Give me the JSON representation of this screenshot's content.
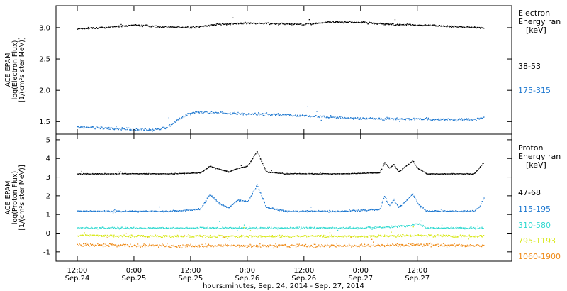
{
  "chart_data": [
    {
      "type": "scatter",
      "panel": "electron",
      "ylabel": [
        "ACE EPAM",
        "log(Electron Flux)",
        "[1/(cm²s ster MeV)]"
      ],
      "legend_title": [
        "Electron",
        "Energy ran",
        "[keV]"
      ],
      "ylim": [
        1.3,
        3.35
      ],
      "yticks": [
        {
          "v": 1.5,
          "label": "1.5"
        },
        {
          "v": 2.0,
          "label": "2.0"
        },
        {
          "v": 2.5,
          "label": "2.5"
        },
        {
          "v": 3.0,
          "label": "3.0"
        }
      ],
      "series": [
        {
          "name": "38-53",
          "color": "#000000",
          "values_by_time": [
            [
              0,
              2.99
            ],
            [
              6,
              3.01
            ],
            [
              12,
              3.05
            ],
            [
              18,
              3.02
            ],
            [
              24,
              3.01
            ],
            [
              30,
              3.06
            ],
            [
              36,
              3.08
            ],
            [
              42,
              3.07
            ],
            [
              48,
              3.06
            ],
            [
              54,
              3.1
            ],
            [
              60,
              3.09
            ],
            [
              66,
              3.06
            ],
            [
              72,
              3.05
            ],
            [
              78,
              3.03
            ],
            [
              84,
              3.01
            ],
            [
              86,
              3.0
            ]
          ],
          "noise": 0.02
        },
        {
          "name": "175-315",
          "color": "#1e78d0",
          "values_by_time": [
            [
              0,
              1.42
            ],
            [
              6,
              1.4
            ],
            [
              12,
              1.38
            ],
            [
              16,
              1.37
            ],
            [
              19,
              1.42
            ],
            [
              21,
              1.52
            ],
            [
              23,
              1.62
            ],
            [
              25,
              1.66
            ],
            [
              30,
              1.65
            ],
            [
              36,
              1.63
            ],
            [
              42,
              1.62
            ],
            [
              48,
              1.6
            ],
            [
              54,
              1.58
            ],
            [
              60,
              1.56
            ],
            [
              66,
              1.55
            ],
            [
              72,
              1.55
            ],
            [
              78,
              1.54
            ],
            [
              84,
              1.54
            ],
            [
              86,
              1.57
            ]
          ],
          "noise": 0.03
        }
      ]
    },
    {
      "type": "scatter",
      "panel": "proton",
      "ylabel": [
        "ACE EPAM",
        "log(Proton Flux)",
        "[1/(cm²s ster MeV)]"
      ],
      "legend_title": [
        "Proton",
        "Energy ran",
        "[keV]"
      ],
      "ylim": [
        -1.5,
        5.3
      ],
      "yticks": [
        {
          "v": -1,
          "label": "-1"
        },
        {
          "v": 0,
          "label": "0"
        },
        {
          "v": 1,
          "label": "1"
        },
        {
          "v": 2,
          "label": "2"
        },
        {
          "v": 3,
          "label": "3"
        },
        {
          "v": 4,
          "label": "4"
        },
        {
          "v": 5,
          "label": "5"
        }
      ],
      "series": [
        {
          "name": "47-68",
          "color": "#000000",
          "values_by_time": [
            [
              0,
              3.2
            ],
            [
              10,
              3.2
            ],
            [
              20,
              3.2
            ],
            [
              26,
              3.25
            ],
            [
              28,
              3.6
            ],
            [
              30,
              3.45
            ],
            [
              32,
              3.3
            ],
            [
              34,
              3.5
            ],
            [
              36,
              3.6
            ],
            [
              38,
              4.4
            ],
            [
              40,
              3.3
            ],
            [
              44,
              3.2
            ],
            [
              56,
              3.2
            ],
            [
              64,
              3.25
            ],
            [
              65,
              3.8
            ],
            [
              66,
              3.5
            ],
            [
              67,
              3.7
            ],
            [
              68,
              3.3
            ],
            [
              71,
              3.9
            ],
            [
              72,
              3.5
            ],
            [
              74,
              3.2
            ],
            [
              84,
              3.2
            ],
            [
              85,
              3.5
            ],
            [
              86,
              3.8
            ]
          ],
          "noise": 0.03
        },
        {
          "name": "115-195",
          "color": "#1e78d0",
          "values_by_time": [
            [
              0,
              1.2
            ],
            [
              10,
              1.2
            ],
            [
              20,
              1.2
            ],
            [
              26,
              1.3
            ],
            [
              28,
              2.1
            ],
            [
              30,
              1.6
            ],
            [
              32,
              1.4
            ],
            [
              34,
              1.8
            ],
            [
              36,
              1.7
            ],
            [
              38,
              2.6
            ],
            [
              40,
              1.4
            ],
            [
              44,
              1.2
            ],
            [
              56,
              1.2
            ],
            [
              64,
              1.3
            ],
            [
              65,
              2.0
            ],
            [
              66,
              1.5
            ],
            [
              67,
              1.8
            ],
            [
              68,
              1.4
            ],
            [
              71,
              2.1
            ],
            [
              72,
              1.6
            ],
            [
              74,
              1.2
            ],
            [
              84,
              1.2
            ],
            [
              85,
              1.4
            ],
            [
              86,
              1.9
            ]
          ],
          "noise": 0.06
        },
        {
          "name": "310-580",
          "color": "#2fd9d0",
          "values_by_time": [
            [
              0,
              0.3
            ],
            [
              20,
              0.3
            ],
            [
              40,
              0.3
            ],
            [
              60,
              0.3
            ],
            [
              70,
              0.4
            ],
            [
              72,
              0.55
            ],
            [
              74,
              0.3
            ],
            [
              86,
              0.3
            ]
          ],
          "noise": 0.07
        },
        {
          "name": "795-1193",
          "color": "#d8e81a",
          "values_by_time": [
            [
              0,
              -0.1
            ],
            [
              20,
              -0.15
            ],
            [
              40,
              -0.15
            ],
            [
              60,
              -0.15
            ],
            [
              72,
              -0.1
            ],
            [
              86,
              -0.15
            ]
          ],
          "noise": 0.09
        },
        {
          "name": "1060-1900",
          "color": "#ef8a17",
          "values_by_time": [
            [
              0,
              -0.6
            ],
            [
              20,
              -0.65
            ],
            [
              40,
              -0.65
            ],
            [
              60,
              -0.65
            ],
            [
              72,
              -0.6
            ],
            [
              86,
              -0.65
            ]
          ],
          "noise": 0.13
        }
      ]
    }
  ],
  "x_axis": {
    "xlim": [
      -4.5,
      92
    ],
    "time_label": "hours:minutes, Sep. 24, 2014 - Sep. 27, 2014",
    "ticks": [
      {
        "v": 0,
        "time": "12:00",
        "date": "Sep.24"
      },
      {
        "v": 12,
        "time": "0:00",
        "date": "Sep.25"
      },
      {
        "v": 24,
        "time": "12:00",
        "date": "Sep.25"
      },
      {
        "v": 36,
        "time": "0:00",
        "date": "Sep.26"
      },
      {
        "v": 48,
        "time": "12:00",
        "date": "Sep.26"
      },
      {
        "v": 60,
        "time": "0:00",
        "date": "Sep.27"
      },
      {
        "v": 72,
        "time": "12:00",
        "date": "Sep.27"
      }
    ]
  }
}
